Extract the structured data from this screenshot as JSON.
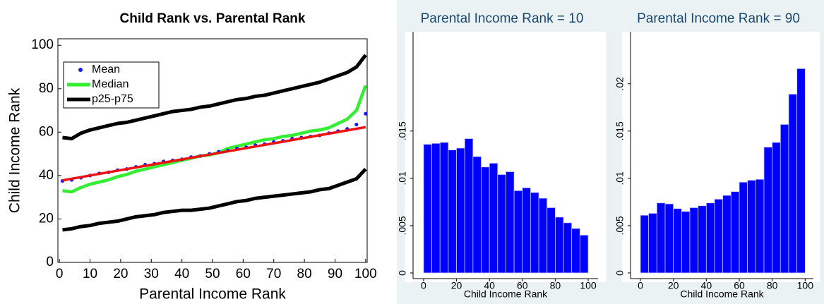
{
  "chart_data": [
    {
      "type": "line",
      "title": "Child Rank vs. Parental Rank",
      "xlabel": "Parental Income Rank",
      "ylabel": "Child Income Rank",
      "x": [
        1,
        4,
        7,
        10,
        13,
        16,
        19,
        22,
        25,
        28,
        31,
        34,
        37,
        40,
        43,
        46,
        49,
        52,
        55,
        58,
        61,
        64,
        67,
        70,
        73,
        76,
        79,
        82,
        85,
        88,
        91,
        94,
        97,
        100
      ],
      "series": [
        {
          "name": "Mean",
          "color": "#1a1aff",
          "mode": "markers",
          "values": [
            37.5,
            38,
            39,
            40,
            41,
            41.5,
            42.5,
            43,
            44,
            45,
            45.5,
            46.5,
            47,
            47.5,
            48.5,
            49,
            50,
            51,
            51.5,
            52.5,
            53,
            54,
            54.5,
            55.5,
            56,
            57,
            57.5,
            58,
            58.5,
            59.5,
            60.5,
            61.5,
            63.5,
            68.5
          ]
        },
        {
          "name": "Median",
          "color": "#33ee33",
          "mode": "lines",
          "values": [
            33,
            32.5,
            34.5,
            36,
            37,
            38,
            39.5,
            40.5,
            42,
            43,
            44,
            45,
            46,
            47,
            48,
            49,
            49.5,
            50.5,
            52.5,
            53.5,
            54.5,
            55.5,
            56.5,
            57,
            58,
            58.5,
            59.5,
            60.5,
            61,
            62,
            64,
            66,
            70,
            81.5
          ]
        },
        {
          "name": "p25-p75",
          "color": "#000000",
          "mode": "band-lines",
          "high": [
            57.5,
            57,
            59.5,
            61,
            62,
            63,
            64,
            64.5,
            65.5,
            66.5,
            67.5,
            68.5,
            69.5,
            70,
            70.5,
            71.5,
            72,
            73,
            74,
            75,
            75.5,
            76.5,
            77,
            78,
            79,
            80,
            81,
            82,
            83,
            84.5,
            86,
            87.5,
            90,
            95.5
          ],
          "low": [
            15,
            15.5,
            16.5,
            17,
            18,
            18.5,
            19,
            20,
            21,
            21.5,
            22,
            23,
            23.5,
            24,
            24,
            24.5,
            25,
            26,
            27,
            28,
            28.5,
            29.5,
            30,
            30.5,
            31,
            31.5,
            32,
            32.5,
            33.5,
            34,
            35.5,
            37,
            38.5,
            43
          ]
        }
      ],
      "fit": {
        "color": "#ee1111",
        "x": [
          1,
          100
        ],
        "values": [
          37.8,
          62.3
        ]
      },
      "xlim": [
        -0.5,
        100.5
      ],
      "xticks": [
        0,
        10,
        20,
        30,
        40,
        50,
        60,
        70,
        80,
        90,
        100
      ],
      "ylim": [
        0,
        103
      ],
      "yticks": [
        0,
        20,
        40,
        60,
        80,
        100
      ],
      "legend": "upper left"
    },
    {
      "type": "histogram",
      "title": "Parental Income Rank = 10",
      "xlabel": "Child Income Rank",
      "color": "#0000ff",
      "bins": [
        0,
        5,
        10,
        15,
        20,
        25,
        30,
        35,
        40,
        45,
        50,
        55,
        60,
        65,
        70,
        75,
        80,
        85,
        90,
        95,
        100
      ],
      "values": [
        0.0136,
        0.0137,
        0.0138,
        0.013,
        0.0132,
        0.0142,
        0.0123,
        0.0112,
        0.0116,
        0.0104,
        0.0107,
        0.0087,
        0.009,
        0.0085,
        0.0079,
        0.0069,
        0.0059,
        0.0053,
        0.0047,
        0.004
      ],
      "xlim": [
        -6.4,
        106
      ],
      "xticks": [
        0,
        20,
        40,
        60,
        80,
        100
      ],
      "ylim": [
        -0.0006,
        0.0255
      ],
      "yticks": [
        0,
        {
          "value": 0.005,
          "label": ".005"
        },
        {
          "value": 0.01,
          "label": ".01"
        },
        {
          "value": 0.015,
          "label": ".015"
        }
      ]
    },
    {
      "type": "histogram",
      "title": "Parental Income Rank = 90",
      "xlabel": "Child Income Rank",
      "color": "#0000ff",
      "bins": [
        0,
        5,
        10,
        15,
        20,
        25,
        30,
        35,
        40,
        45,
        50,
        55,
        60,
        65,
        70,
        75,
        80,
        85,
        90,
        95,
        100
      ],
      "values": [
        0.0061,
        0.0063,
        0.0074,
        0.0073,
        0.0068,
        0.0065,
        0.0069,
        0.0071,
        0.0074,
        0.0078,
        0.0082,
        0.0086,
        0.0096,
        0.0098,
        0.0099,
        0.0133,
        0.0138,
        0.0157,
        0.0189,
        0.0216
      ],
      "xlim": [
        -6,
        105
      ],
      "xticks": [
        0,
        20,
        40,
        60,
        80,
        100
      ],
      "ylim": [
        -0.0006,
        0.0255
      ],
      "yticks": [
        0,
        {
          "value": 0.005,
          "label": ".005"
        },
        {
          "value": 0.01,
          "label": ".01"
        },
        {
          "value": 0.015,
          "label": ".015"
        },
        {
          "value": 0.02,
          "label": ".02"
        }
      ]
    }
  ]
}
